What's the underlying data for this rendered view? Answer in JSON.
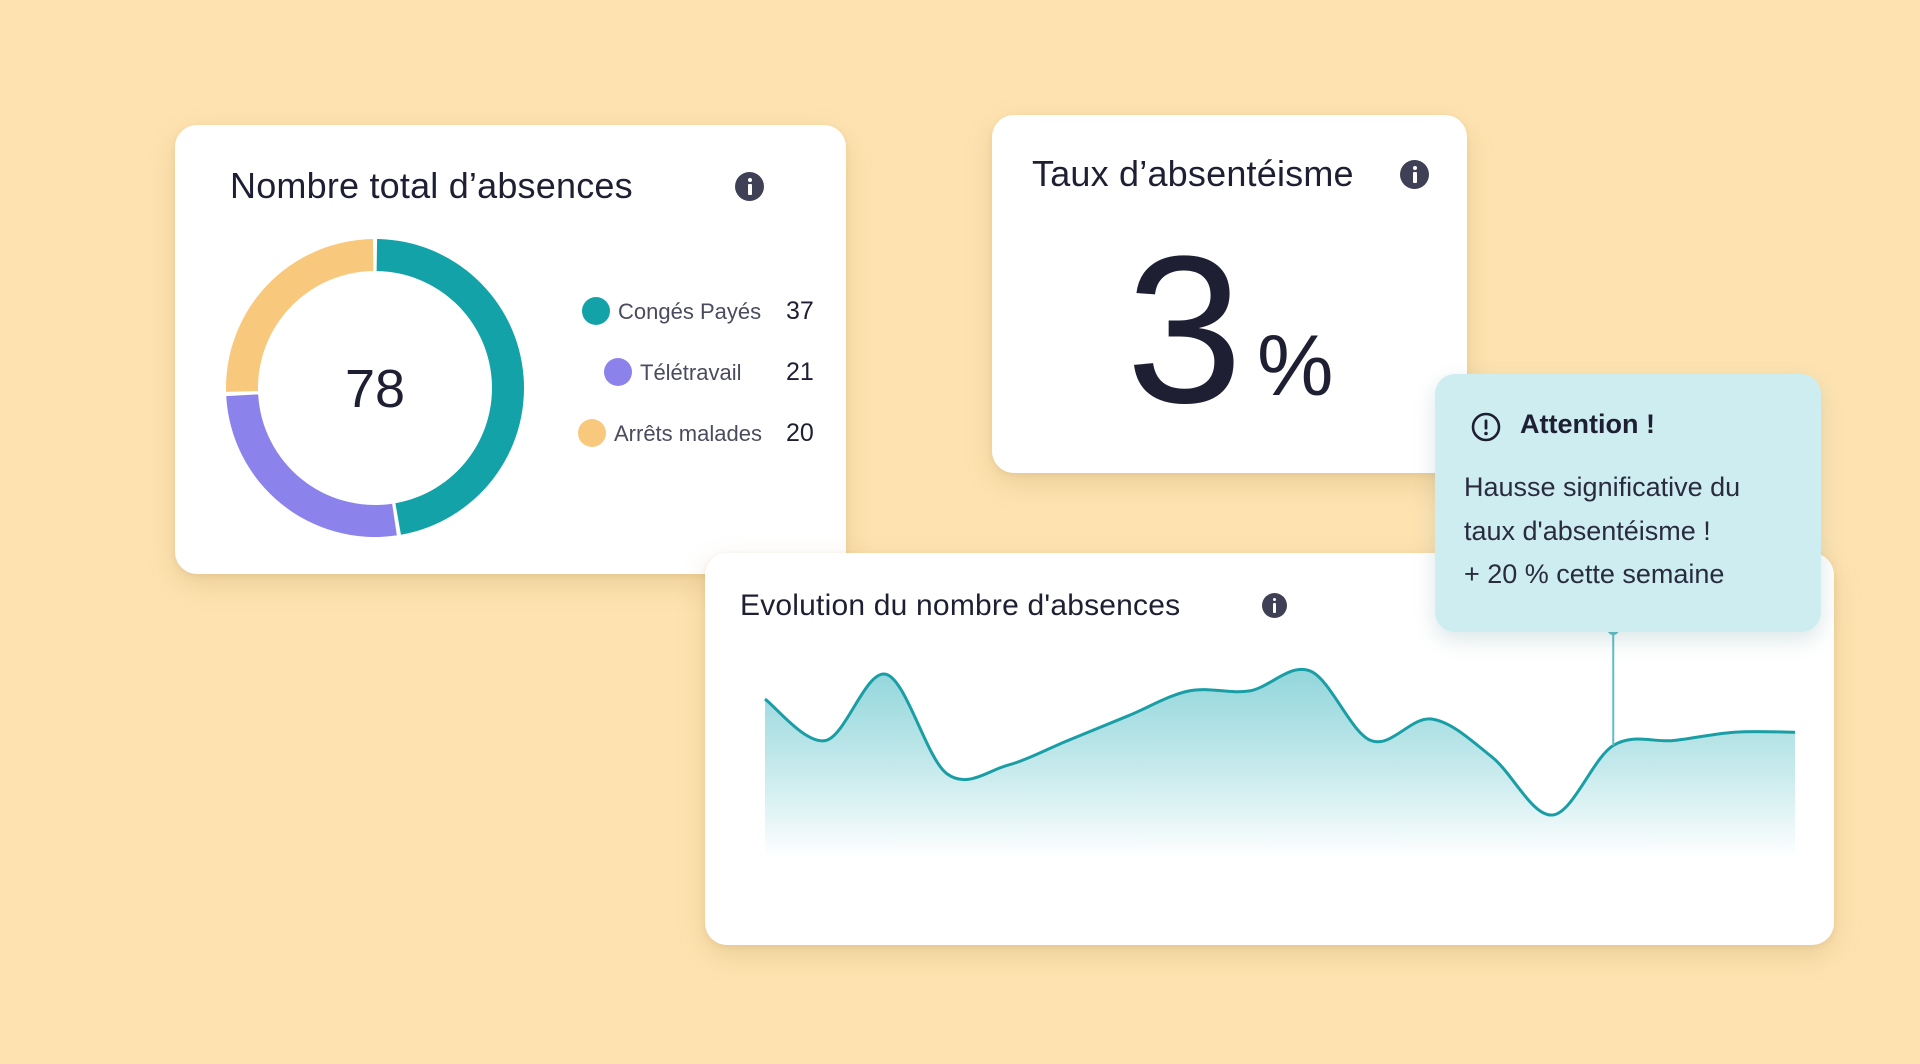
{
  "colors": {
    "background": "#FEE3B1",
    "conges_payes": "#12A2A8",
    "teletravail": "#8C82EC",
    "arrets_malades": "#F8C87C",
    "line": "#1A9EA6",
    "tooltip_bg": "#CDEDF0"
  },
  "total_absences": {
    "title": "Nombre total d’absences",
    "total": "78",
    "info_icon": "info-icon",
    "legend": [
      {
        "label": "Congés Payés",
        "value": "37",
        "color": "#12A2A8"
      },
      {
        "label": "Télétravail",
        "value": "21",
        "color": "#8C82EC"
      },
      {
        "label": "Arrêts malades",
        "value": "20",
        "color": "#F8C87C"
      }
    ]
  },
  "absenteeism_rate": {
    "title": "Taux d’absentéisme",
    "value": "3",
    "unit": "%",
    "info_icon": "info-icon"
  },
  "evolution": {
    "title": "Evolution du nombre d'absences",
    "info_icon": "info-icon"
  },
  "alert": {
    "icon": "alert-circle-icon",
    "title": "Attention !",
    "lines": [
      "Hausse significative du",
      "taux d'absentéisme !",
      "+ 20 % cette semaine"
    ]
  },
  "chart_data": [
    {
      "type": "pie",
      "categories": [
        "Congés Payés",
        "Télétravail",
        "Arrêts malades"
      ],
      "values": [
        37,
        21,
        20
      ],
      "title": "Nombre total d’absences"
    },
    {
      "type": "area",
      "title": "Evolution du nombre d'absences",
      "values": [
        70,
        45,
        85,
        25,
        30,
        45,
        60,
        75,
        75,
        87,
        45,
        58,
        35,
        0,
        42,
        45,
        50,
        50
      ],
      "highlight_index": 14,
      "grid": false,
      "legend": "none"
    }
  ]
}
